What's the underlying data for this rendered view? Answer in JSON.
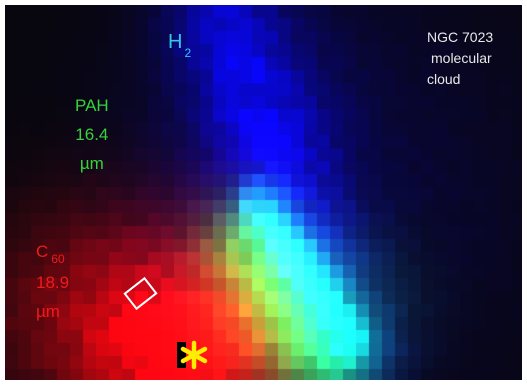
{
  "title": {
    "line1": "NGC 7023",
    "line2": "molecular",
    "line3": "cloud"
  },
  "labels": {
    "h2": {
      "main": "H",
      "sub": "2",
      "color": "#33c6f0"
    },
    "pah": {
      "line1": "PAH",
      "line2": "16.4",
      "line3": "µm",
      "color": "#35d23a"
    },
    "c60": {
      "main": "C",
      "sub": "60",
      "line2": "18.9",
      "line3": "µm",
      "color": "#ee1b1b"
    }
  },
  "colors": {
    "background": "#0a0a10",
    "star_marker": "#ffee00",
    "box_marker": "#ffffff"
  },
  "icons": {
    "box_marker": "square-outline-icon",
    "star_marker": "asterisk-star-icon"
  }
}
